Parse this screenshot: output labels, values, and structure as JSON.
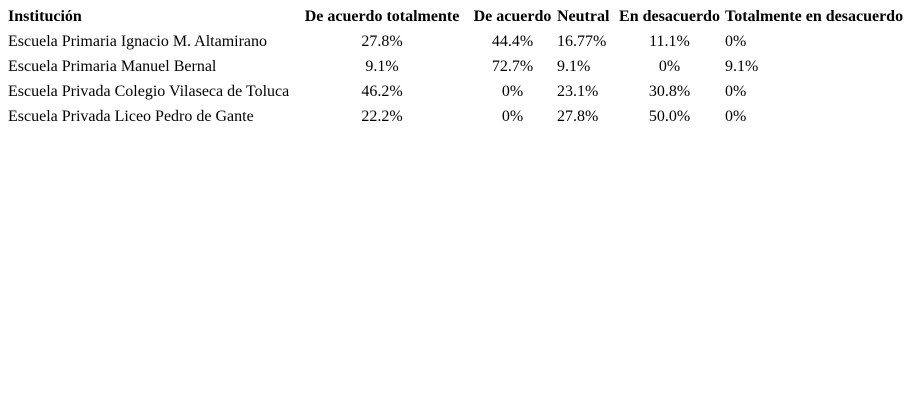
{
  "table": {
    "columns": [
      "Institución",
      "De acuerdo totalmente",
      "De acuerdo",
      "Neutral",
      "En desacuerdo",
      "Totalmente en desacuerdo"
    ],
    "rows": [
      [
        "Escuela Primaria Ignacio M. Altamirano",
        "27.8%",
        "44.4%",
        "16.77%",
        "11.1%",
        "0%"
      ],
      [
        "Escuela Primaria Manuel Bernal",
        "9.1%",
        "72.7%",
        "9.1%",
        "0%",
        "9.1%"
      ],
      [
        "Escuela Privada Colegio Vilaseca de Toluca",
        "46.2%",
        "0%",
        "23.1%",
        "30.8%",
        "0%"
      ],
      [
        "Escuela Privada Liceo Pedro de Gante",
        "22.2%",
        "0%",
        "27.8%",
        "50.0%",
        "0%"
      ]
    ]
  },
  "colors": {
    "text": "#000000",
    "background": "#ffffff"
  }
}
